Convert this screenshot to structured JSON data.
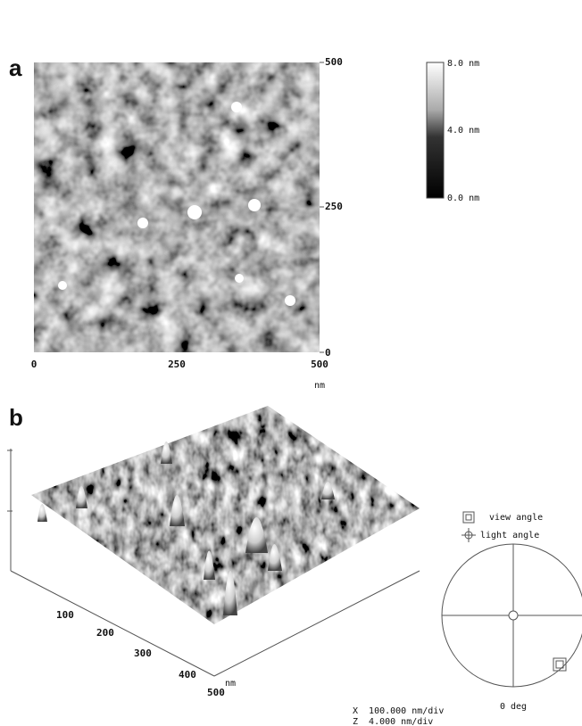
{
  "panel_a": {
    "label": "a",
    "x_ticks": [
      "0",
      "250",
      "500"
    ],
    "x_unit": "nm",
    "y_ticks": [
      "500",
      "250",
      "0"
    ],
    "colorbar_labels": [
      "8.0 nm",
      "4.0 nm",
      "0.0 nm"
    ]
  },
  "panel_b": {
    "label": "b",
    "axis_ticks": [
      "100",
      "200",
      "300",
      "400",
      "500"
    ],
    "axis_unit": "nm",
    "legend": [
      "view angle",
      "light angle"
    ],
    "dial_label": "0 deg",
    "scale": [
      "X  100.000 nm/div",
      "Z  4.000 nm/div"
    ]
  }
}
